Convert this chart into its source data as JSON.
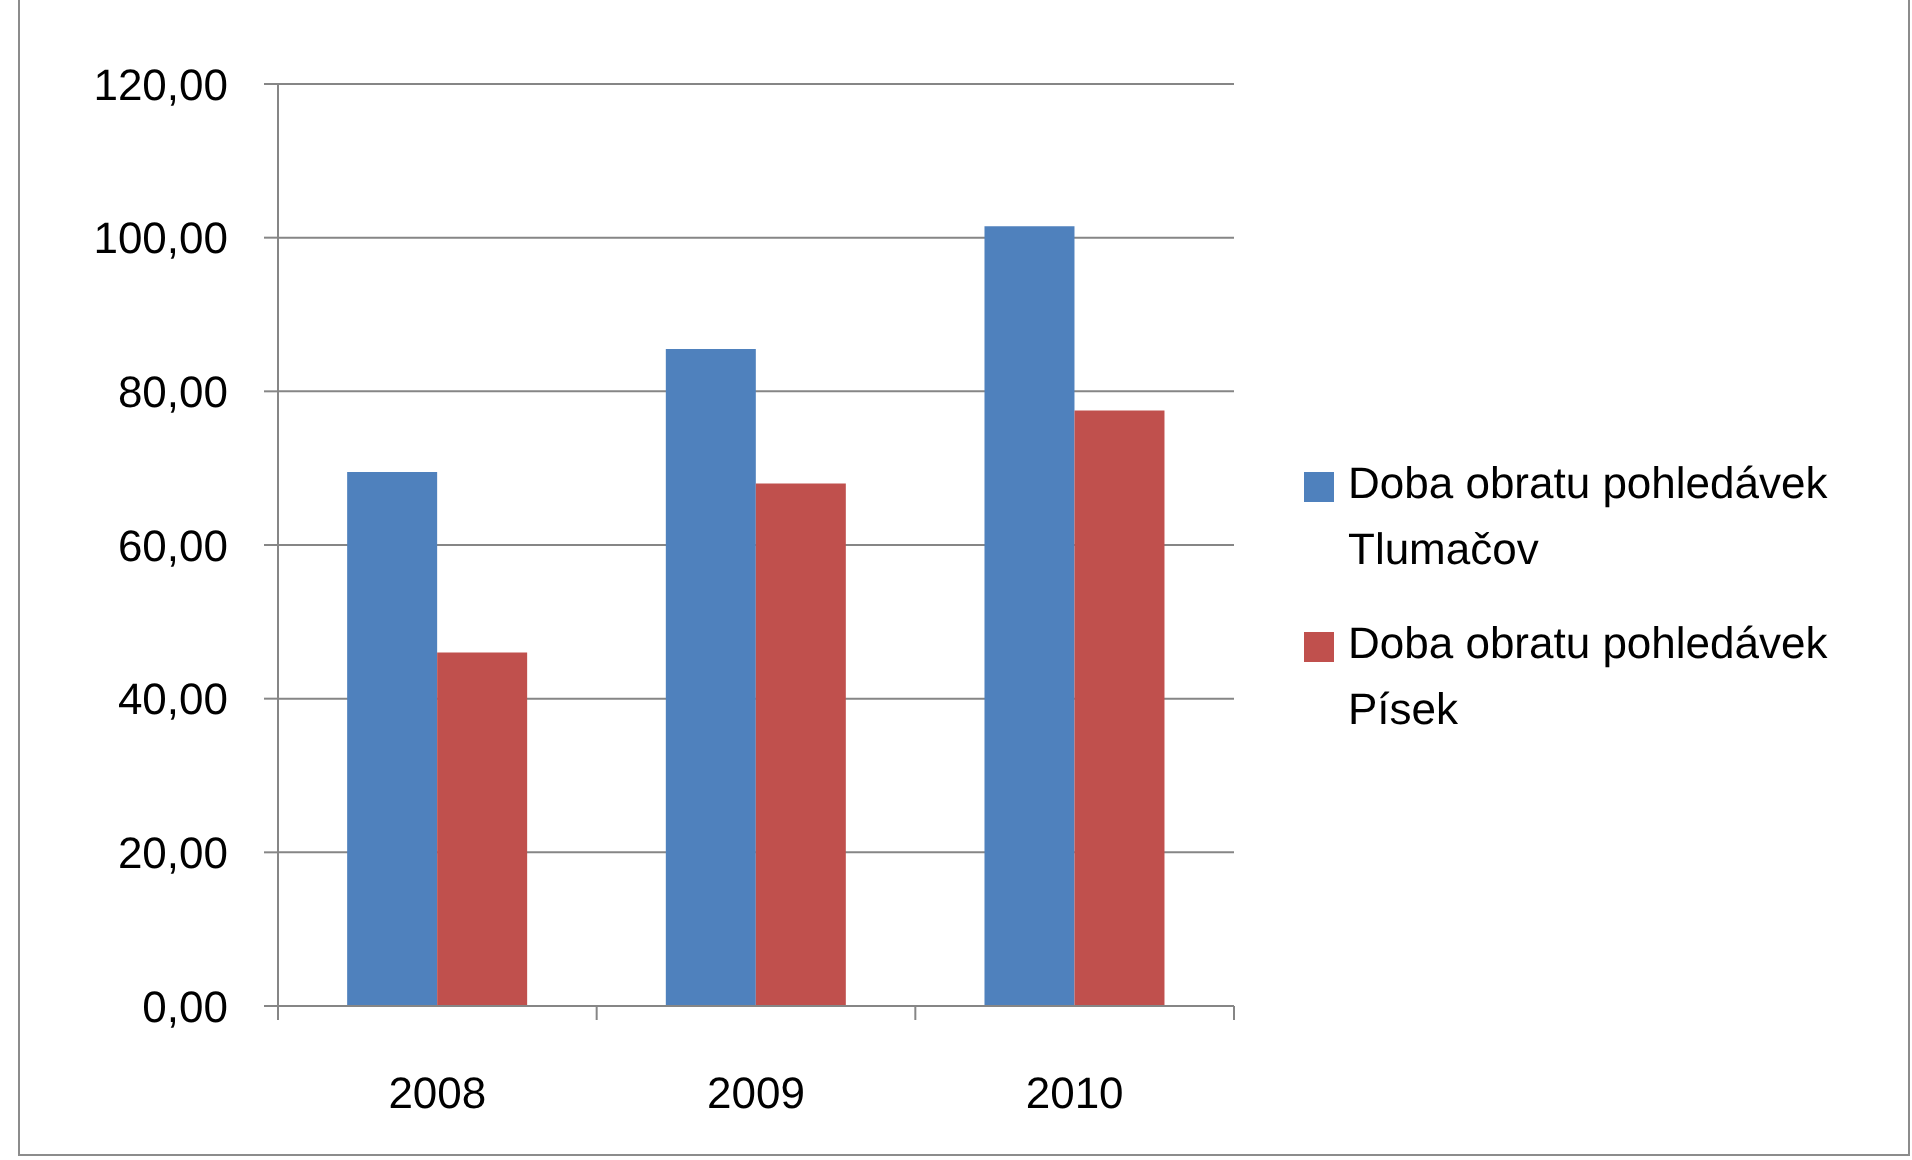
{
  "chart_data": {
    "type": "bar",
    "categories": [
      "2008",
      "2009",
      "2010"
    ],
    "series": [
      {
        "name": "Doba obratu pohledávek Tlumačov",
        "color": "#4f81bd",
        "values": [
          69.5,
          85.5,
          101.5
        ]
      },
      {
        "name": "Doba obratu pohledávek Písek",
        "color": "#c0504d",
        "values": [
          46,
          68,
          77.5
        ]
      }
    ],
    "ylim": [
      0,
      120
    ],
    "yticks": [
      {
        "value": 0,
        "label": "0,00"
      },
      {
        "value": 20,
        "label": "20,00"
      },
      {
        "value": 40,
        "label": "40,00"
      },
      {
        "value": 60,
        "label": "60,00"
      },
      {
        "value": 80,
        "label": "80,00"
      },
      {
        "value": 100,
        "label": "100,00"
      },
      {
        "value": 120,
        "label": "120,00"
      }
    ],
    "grid": "y",
    "legend": "right"
  }
}
